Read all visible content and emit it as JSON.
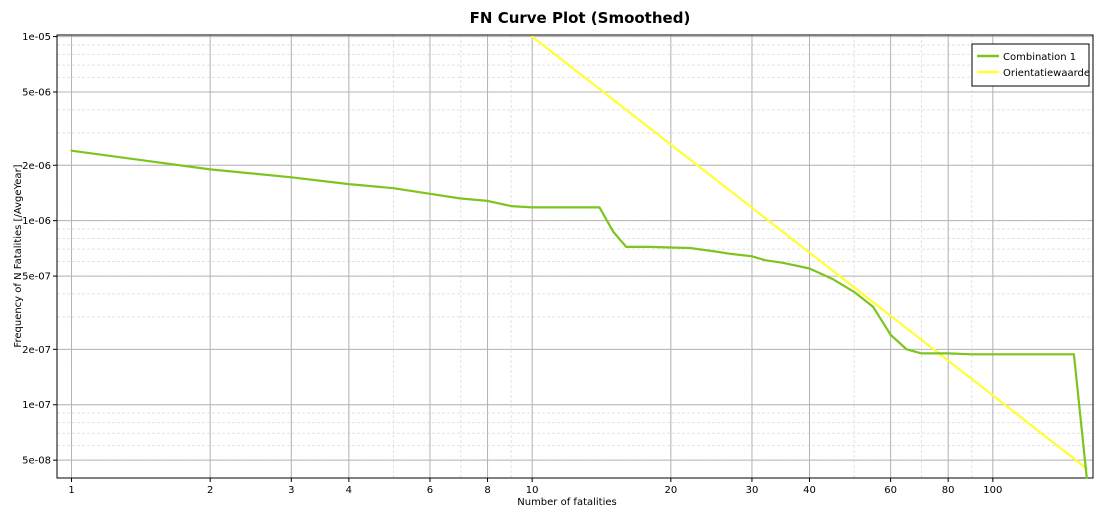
{
  "chart_data": {
    "type": "line",
    "title": "FN Curve Plot (Smoothed)",
    "xlabel": "Number of fatalities",
    "ylabel": "Frequency of N Fatalities [/AvgeYear]",
    "x_scale": "log",
    "y_scale": "log",
    "xlim": [
      0.93,
      165
    ],
    "ylim": [
      4e-08,
      1.02e-05
    ],
    "x_major_ticks": [
      1,
      2,
      3,
      4,
      6,
      8,
      10,
      20,
      30,
      40,
      60,
      80,
      100
    ],
    "x_tick_labels": [
      "1",
      "2",
      "3",
      "4",
      "6",
      "8",
      "10",
      "20",
      "30",
      "40",
      "60",
      "80",
      "100"
    ],
    "y_major_ticks": [
      5e-08,
      1e-07,
      2e-07,
      5e-07,
      1e-06,
      2e-06,
      5e-06,
      1e-05
    ],
    "y_tick_labels": [
      "5e-08",
      "1e-07",
      "2e-07",
      "5e-07",
      "1e-06",
      "2e-06",
      "5e-06",
      "1e-05"
    ],
    "grid": true,
    "legend_position": "top-right",
    "series": [
      {
        "name": "Combination 1",
        "color": "#7dc41f",
        "x": [
          1,
          2,
          3,
          4,
          5,
          6,
          7,
          8,
          9,
          10,
          12,
          14,
          15,
          16,
          18,
          20,
          22,
          25,
          27,
          30,
          32,
          35,
          40,
          45,
          50,
          55,
          60,
          65,
          70,
          80,
          90,
          100,
          120,
          150,
          160
        ],
        "y": [
          2.4e-06,
          1.9e-06,
          1.72e-06,
          1.58e-06,
          1.5e-06,
          1.4e-06,
          1.32e-06,
          1.28e-06,
          1.2e-06,
          1.18e-06,
          1.18e-06,
          1.18e-06,
          8.7e-07,
          7.2e-07,
          7.2e-07,
          7.15e-07,
          7.1e-07,
          6.8e-07,
          6.6e-07,
          6.4e-07,
          6.1e-07,
          5.9e-07,
          5.5e-07,
          4.8e-07,
          4.1e-07,
          3.4e-07,
          2.4e-07,
          2e-07,
          1.9e-07,
          1.9e-07,
          1.88e-07,
          1.88e-07,
          1.88e-07,
          1.88e-07,
          4e-08
        ]
      },
      {
        "name": "Orientatiewaarde",
        "color": "#ffff33",
        "x": [
          10,
          160
        ],
        "y": [
          1e-05,
          4.5e-08
        ]
      }
    ]
  }
}
